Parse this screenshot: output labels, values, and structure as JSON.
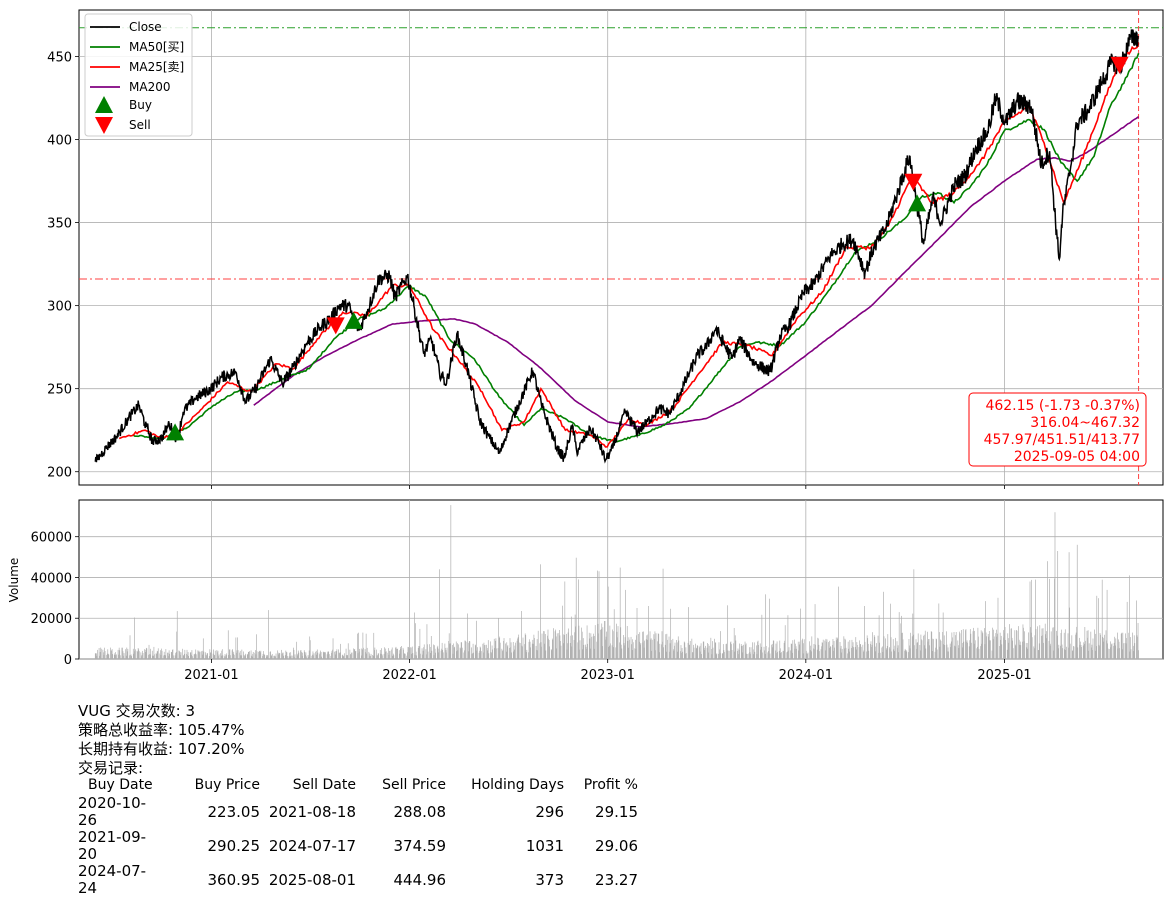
{
  "chart_data": [
    {
      "type": "line",
      "symbol": "VUG",
      "legend": [
        "Close",
        "MA50[买]",
        "MA25[卖]",
        "MA200",
        "Buy",
        "Sell"
      ],
      "legend_position": "upper-left",
      "grid": true,
      "ylim": [
        192,
        478
      ],
      "yticks": [
        200,
        250,
        300,
        350,
        400,
        450
      ],
      "xticks": [
        "2021-01",
        "2022-01",
        "2023-01",
        "2024-01",
        "2025-01"
      ],
      "series_keypoints": {
        "close": [
          [
            "2020-06-01",
            206
          ],
          [
            "2020-06-20",
            214
          ],
          [
            "2020-07-10",
            221
          ],
          [
            "2020-08-01",
            232
          ],
          [
            "2020-08-20",
            240
          ],
          [
            "2020-09-03",
            227
          ],
          [
            "2020-09-15",
            218
          ],
          [
            "2020-10-01",
            220
          ],
          [
            "2020-10-15",
            229
          ],
          [
            "2020-10-30",
            219
          ],
          [
            "2020-11-10",
            236
          ],
          [
            "2020-12-01",
            244
          ],
          [
            "2020-12-31",
            250
          ],
          [
            "2021-01-20",
            257
          ],
          [
            "2021-02-15",
            260
          ],
          [
            "2021-03-05",
            242
          ],
          [
            "2021-03-25",
            251
          ],
          [
            "2021-04-20",
            268
          ],
          [
            "2021-05-12",
            253
          ],
          [
            "2021-06-01",
            263
          ],
          [
            "2021-06-25",
            277
          ],
          [
            "2021-07-20",
            287
          ],
          [
            "2021-08-10",
            293
          ],
          [
            "2021-08-25",
            300
          ],
          [
            "2021-09-10",
            300
          ],
          [
            "2021-09-30",
            285
          ],
          [
            "2021-10-20",
            301
          ],
          [
            "2021-11-05",
            316
          ],
          [
            "2021-11-25",
            318
          ],
          [
            "2021-12-05",
            305
          ],
          [
            "2021-12-28",
            318
          ],
          [
            "2022-01-10",
            298
          ],
          [
            "2022-01-27",
            271
          ],
          [
            "2022-02-10",
            280
          ],
          [
            "2022-02-25",
            260
          ],
          [
            "2022-03-10",
            253
          ],
          [
            "2022-03-29",
            283
          ],
          [
            "2022-04-15",
            265
          ],
          [
            "2022-05-10",
            231
          ],
          [
            "2022-05-25",
            222
          ],
          [
            "2022-06-16",
            211
          ],
          [
            "2022-07-01",
            225
          ],
          [
            "2022-07-20",
            240
          ],
          [
            "2022-08-16",
            261
          ],
          [
            "2022-09-01",
            240
          ],
          [
            "2022-09-30",
            214
          ],
          [
            "2022-10-13",
            208
          ],
          [
            "2022-10-28",
            228
          ],
          [
            "2022-11-05",
            212
          ],
          [
            "2022-11-30",
            226
          ],
          [
            "2022-12-15",
            218
          ],
          [
            "2022-12-28",
            207
          ],
          [
            "2023-01-10",
            214
          ],
          [
            "2023-02-02",
            236
          ],
          [
            "2023-02-25",
            224
          ],
          [
            "2023-03-15",
            230
          ],
          [
            "2023-04-05",
            238
          ],
          [
            "2023-04-25",
            235
          ],
          [
            "2023-05-15",
            248
          ],
          [
            "2023-06-01",
            260
          ],
          [
            "2023-06-15",
            270
          ],
          [
            "2023-07-01",
            275
          ],
          [
            "2023-07-19",
            286
          ],
          [
            "2023-08-18",
            268
          ],
          [
            "2023-09-01",
            280
          ],
          [
            "2023-09-26",
            266
          ],
          [
            "2023-10-27",
            260
          ],
          [
            "2023-11-15",
            282
          ],
          [
            "2023-12-01",
            288
          ],
          [
            "2023-12-28",
            308
          ],
          [
            "2024-01-15",
            313
          ],
          [
            "2024-02-15",
            330
          ],
          [
            "2024-03-08",
            337
          ],
          [
            "2024-03-28",
            340
          ],
          [
            "2024-04-19",
            320
          ],
          [
            "2024-05-05",
            335
          ],
          [
            "2024-05-28",
            347
          ],
          [
            "2024-06-20",
            370
          ],
          [
            "2024-07-10",
            390
          ],
          [
            "2024-07-24",
            360
          ],
          [
            "2024-08-05",
            337
          ],
          [
            "2024-08-22",
            365
          ],
          [
            "2024-09-06",
            350
          ],
          [
            "2024-09-30",
            372
          ],
          [
            "2024-10-20",
            378
          ],
          [
            "2024-11-10",
            395
          ],
          [
            "2024-12-01",
            405
          ],
          [
            "2024-12-16",
            425
          ],
          [
            "2025-01-03",
            410
          ],
          [
            "2025-01-24",
            423
          ],
          [
            "2025-02-19",
            420
          ],
          [
            "2025-03-10",
            385
          ],
          [
            "2025-03-25",
            393
          ],
          [
            "2025-04-08",
            340
          ],
          [
            "2025-04-12",
            328
          ],
          [
            "2025-04-18",
            355
          ],
          [
            "2025-05-05",
            388
          ],
          [
            "2025-05-15",
            410
          ],
          [
            "2025-06-05",
            418
          ],
          [
            "2025-06-30",
            435
          ],
          [
            "2025-07-20",
            448
          ],
          [
            "2025-08-01",
            442
          ],
          [
            "2025-08-20",
            460
          ],
          [
            "2025-09-05",
            462.15
          ]
        ],
        "ma50": [
          [
            "2020-08-10",
            222
          ],
          [
            "2020-10-01",
            220
          ],
          [
            "2020-11-15",
            226
          ],
          [
            "2021-01-05",
            240
          ],
          [
            "2021-02-15",
            248
          ],
          [
            "2021-03-31",
            250
          ],
          [
            "2021-05-15",
            256
          ],
          [
            "2021-06-30",
            262
          ],
          [
            "2021-08-15",
            280
          ],
          [
            "2021-09-30",
            292
          ],
          [
            "2021-11-15",
            298
          ],
          [
            "2021-12-31",
            312
          ],
          [
            "2022-02-01",
            305
          ],
          [
            "2022-03-15",
            280
          ],
          [
            "2022-04-30",
            268
          ],
          [
            "2022-06-15",
            245
          ],
          [
            "2022-07-31",
            228
          ],
          [
            "2022-08-31",
            238
          ],
          [
            "2022-10-15",
            232
          ],
          [
            "2022-11-30",
            222
          ],
          [
            "2023-01-15",
            218
          ],
          [
            "2023-02-28",
            222
          ],
          [
            "2023-04-15",
            228
          ],
          [
            "2023-05-31",
            238
          ],
          [
            "2023-07-15",
            256
          ],
          [
            "2023-08-31",
            275
          ],
          [
            "2023-10-01",
            278
          ],
          [
            "2023-11-15",
            276
          ],
          [
            "2023-12-31",
            290
          ],
          [
            "2024-02-15",
            310
          ],
          [
            "2024-03-31",
            332
          ],
          [
            "2024-05-15",
            340
          ],
          [
            "2024-06-30",
            352
          ],
          [
            "2024-07-31",
            365
          ],
          [
            "2024-08-31",
            368
          ],
          [
            "2024-09-30",
            362
          ],
          [
            "2024-10-31",
            372
          ],
          [
            "2024-11-30",
            385
          ],
          [
            "2024-12-31",
            405
          ],
          [
            "2025-02-15",
            412
          ],
          [
            "2025-03-15",
            406
          ],
          [
            "2025-04-15",
            386
          ],
          [
            "2025-05-15",
            375
          ],
          [
            "2025-06-15",
            390
          ],
          [
            "2025-07-15",
            420
          ],
          [
            "2025-08-15",
            438
          ],
          [
            "2025-09-05",
            452
          ]
        ],
        "ma25": [
          [
            "2020-07-15",
            220
          ],
          [
            "2020-09-01",
            225
          ],
          [
            "2020-10-01",
            220
          ],
          [
            "2020-11-01",
            224
          ],
          [
            "2020-12-15",
            238
          ],
          [
            "2021-01-31",
            254
          ],
          [
            "2021-03-15",
            248
          ],
          [
            "2021-04-30",
            265
          ],
          [
            "2021-06-01",
            262
          ],
          [
            "2021-07-15",
            280
          ],
          [
            "2021-08-31",
            296
          ],
          [
            "2021-10-15",
            294
          ],
          [
            "2021-11-30",
            312
          ],
          [
            "2022-01-01",
            312
          ],
          [
            "2022-02-15",
            285
          ],
          [
            "2022-03-31",
            268
          ],
          [
            "2022-05-15",
            248
          ],
          [
            "2022-06-20",
            225
          ],
          [
            "2022-07-31",
            230
          ],
          [
            "2022-08-31",
            250
          ],
          [
            "2022-10-15",
            225
          ],
          [
            "2022-11-30",
            222
          ],
          [
            "2022-12-31",
            215
          ],
          [
            "2023-02-10",
            232
          ],
          [
            "2023-03-15",
            228
          ],
          [
            "2023-05-01",
            238
          ],
          [
            "2023-06-15",
            258
          ],
          [
            "2023-08-01",
            278
          ],
          [
            "2023-09-15",
            276
          ],
          [
            "2023-10-31",
            270
          ],
          [
            "2023-12-15",
            292
          ],
          [
            "2024-01-31",
            308
          ],
          [
            "2024-03-15",
            335
          ],
          [
            "2024-04-30",
            335
          ],
          [
            "2024-06-01",
            348
          ],
          [
            "2024-07-15",
            378
          ],
          [
            "2024-08-20",
            362
          ],
          [
            "2024-09-30",
            368
          ],
          [
            "2024-11-15",
            385
          ],
          [
            "2024-12-31",
            410
          ],
          [
            "2025-02-15",
            420
          ],
          [
            "2025-03-15",
            398
          ],
          [
            "2025-04-20",
            362
          ],
          [
            "2025-05-20",
            385
          ],
          [
            "2025-06-30",
            420
          ],
          [
            "2025-08-01",
            447
          ],
          [
            "2025-09-05",
            457.97
          ]
        ],
        "ma200": [
          [
            "2021-03-20",
            240
          ],
          [
            "2021-06-01",
            258
          ],
          [
            "2021-08-01",
            270
          ],
          [
            "2021-10-01",
            280
          ],
          [
            "2021-12-01",
            289
          ],
          [
            "2022-02-01",
            291
          ],
          [
            "2022-03-25",
            292
          ],
          [
            "2022-05-01",
            289
          ],
          [
            "2022-07-01",
            278
          ],
          [
            "2022-09-01",
            262
          ],
          [
            "2022-11-01",
            243
          ],
          [
            "2023-01-01",
            230
          ],
          [
            "2023-03-01",
            227
          ],
          [
            "2023-05-01",
            229
          ],
          [
            "2023-07-01",
            232
          ],
          [
            "2023-09-01",
            242
          ],
          [
            "2023-11-01",
            255
          ],
          [
            "2024-01-01",
            270
          ],
          [
            "2024-03-01",
            285
          ],
          [
            "2024-05-01",
            300
          ],
          [
            "2024-07-01",
            320
          ],
          [
            "2024-09-01",
            340
          ],
          [
            "2024-11-01",
            360
          ],
          [
            "2025-01-01",
            375
          ],
          [
            "2025-03-01",
            388
          ],
          [
            "2025-04-01",
            389
          ],
          [
            "2025-05-01",
            387
          ],
          [
            "2025-06-01",
            392
          ],
          [
            "2025-07-15",
            402
          ],
          [
            "2025-09-05",
            413.77
          ]
        ]
      },
      "buy_markers": [
        [
          "2020-10-26",
          223.05
        ],
        [
          "2021-09-20",
          290.25
        ],
        [
          "2024-07-24",
          360.95
        ]
      ],
      "sell_markers": [
        [
          "2021-08-18",
          288.08
        ],
        [
          "2024-07-17",
          374.59
        ],
        [
          "2025-08-01",
          444.96
        ]
      ],
      "hlines": [
        {
          "value": 467.32,
          "color": "#2ca02c",
          "style": "dash-dot"
        },
        {
          "value": 316.04,
          "color": "#ff4040",
          "style": "dash-dot"
        }
      ],
      "vline": {
        "date": "2025-09-05",
        "color": "#ff4040",
        "style": "dashed"
      },
      "info_box": [
        "462.15 (-1.73 -0.37%)",
        "316.04~467.32",
        "457.97/451.51/413.77",
        "2025-09-05 04:00"
      ]
    },
    {
      "type": "bar",
      "ylabel": "Volume",
      "ylim": [
        0,
        78000
      ],
      "yticks": [
        0,
        20000,
        40000,
        60000
      ],
      "grid": true,
      "bar_color": "#b0b0b0",
      "volume_regimes": [
        [
          "2020-06-01",
          4000
        ],
        [
          "2020-12-31",
          3500
        ],
        [
          "2021-06-30",
          3000
        ],
        [
          "2021-12-31",
          4500
        ],
        [
          "2022-06-30",
          8000
        ],
        [
          "2022-12-31",
          13000
        ],
        [
          "2023-06-30",
          6000
        ],
        [
          "2023-12-31",
          7000
        ],
        [
          "2024-06-30",
          9000
        ],
        [
          "2024-12-31",
          12000
        ],
        [
          "2025-06-30",
          11000
        ],
        [
          "2025-09-05",
          9000
        ]
      ],
      "volume_spikes": [
        [
          "2020-10-30",
          23500
        ],
        [
          "2021-04-16",
          24000
        ],
        [
          "2022-02-25",
          44000
        ],
        [
          "2022-03-18",
          75500
        ],
        [
          "2022-10-14",
          38000
        ],
        [
          "2022-12-16",
          43000
        ],
        [
          "2023-03-17",
          26000
        ],
        [
          "2024-06-21",
          23000
        ],
        [
          "2024-12-20",
          30000
        ],
        [
          "2025-03-21",
          48000
        ],
        [
          "2025-04-04",
          72000
        ],
        [
          "2025-04-09",
          53000
        ],
        [
          "2025-06-20",
          31000
        ],
        [
          "2025-08-15",
          28000
        ]
      ]
    }
  ],
  "report": {
    "summary_lines": [
      "VUG 交易次数: 3",
      "策略总收益率: 105.47%",
      "长期持有收益: 107.20%",
      "交易记录:"
    ],
    "table_headers": [
      "Buy Date",
      "Buy Price",
      "Sell Date",
      "Sell Price",
      "Holding Days",
      "Profit %"
    ],
    "trades": [
      [
        "2020-10-26",
        "223.05",
        "2021-08-18",
        "288.08",
        "296",
        "29.15"
      ],
      [
        "2021-09-20",
        "290.25",
        "2024-07-17",
        "374.59",
        "1031",
        "29.06"
      ],
      [
        "2024-07-24",
        "360.95",
        "2025-08-01",
        "444.96",
        "373",
        "23.27"
      ]
    ]
  }
}
